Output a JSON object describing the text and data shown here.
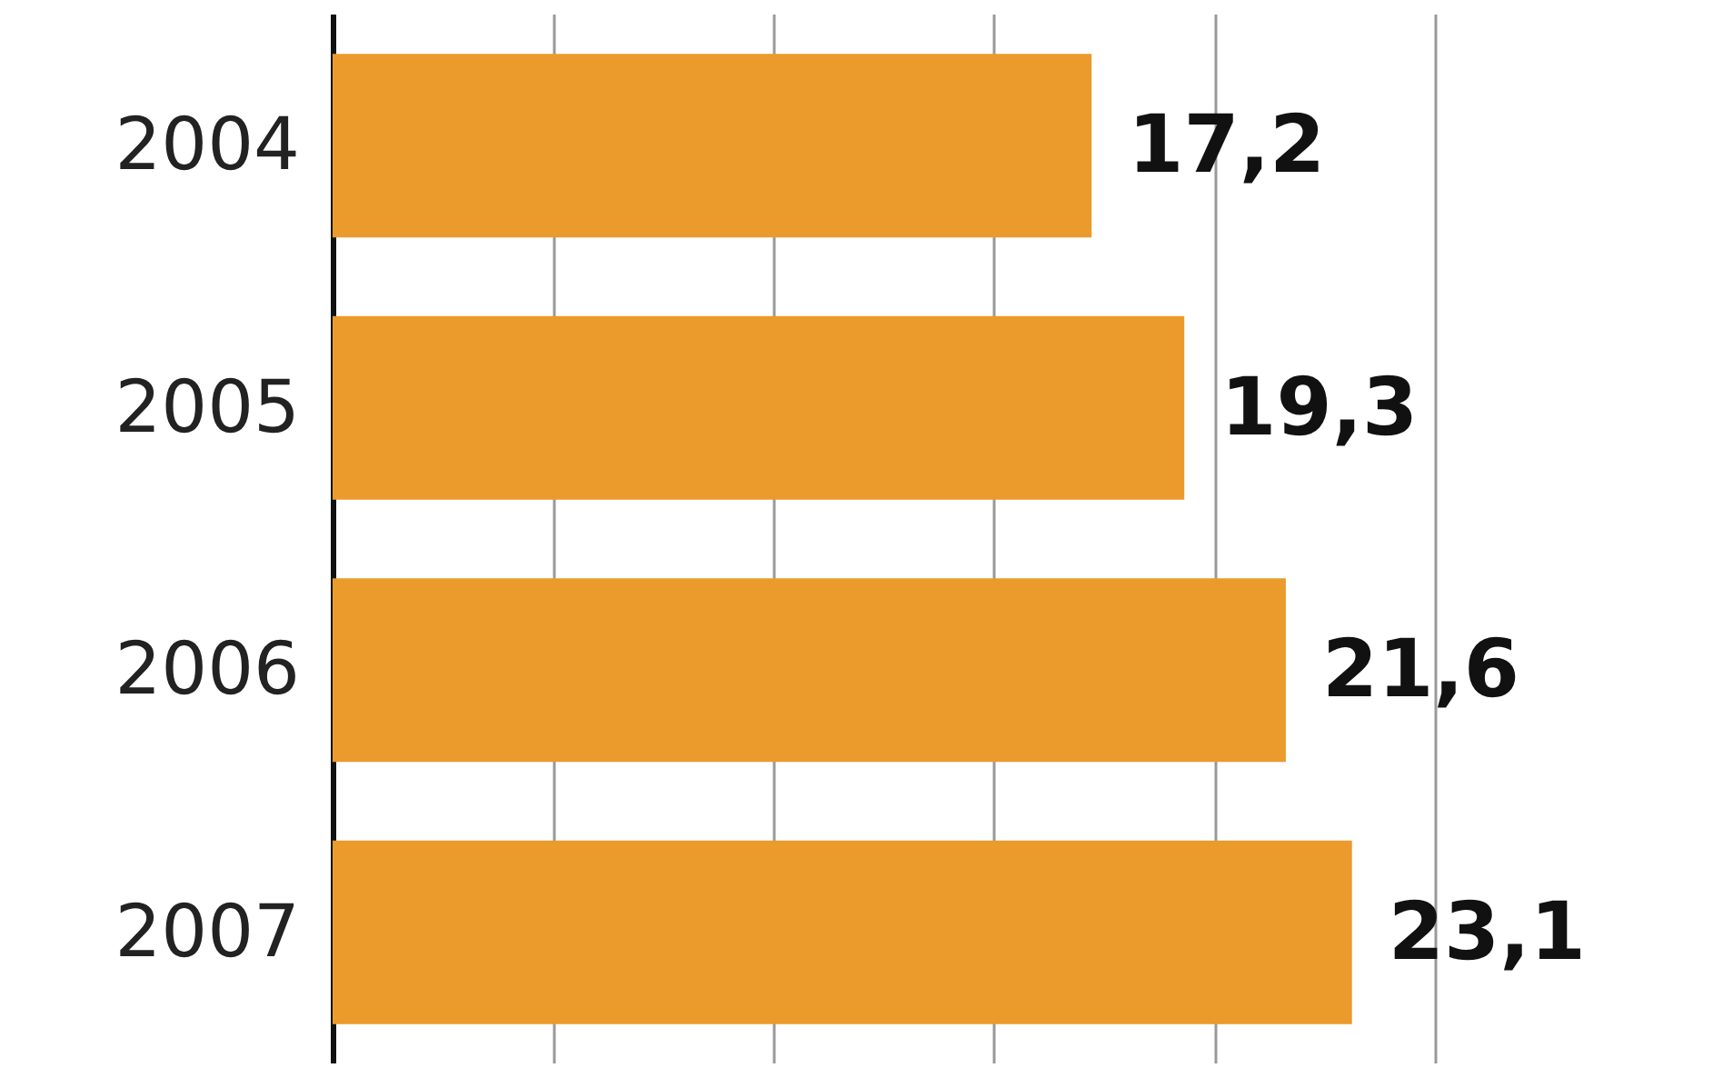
{
  "chart_data": {
    "type": "bar",
    "orientation": "horizontal",
    "categories": [
      "2004",
      "2005",
      "2006",
      "2007"
    ],
    "values": [
      17.2,
      19.3,
      21.6,
      23.1
    ],
    "value_labels": [
      "17,2",
      "19,3",
      "21,6",
      "23,1"
    ],
    "color": "#eb9a2c",
    "grid": "x",
    "tick_labels": "y"
  }
}
